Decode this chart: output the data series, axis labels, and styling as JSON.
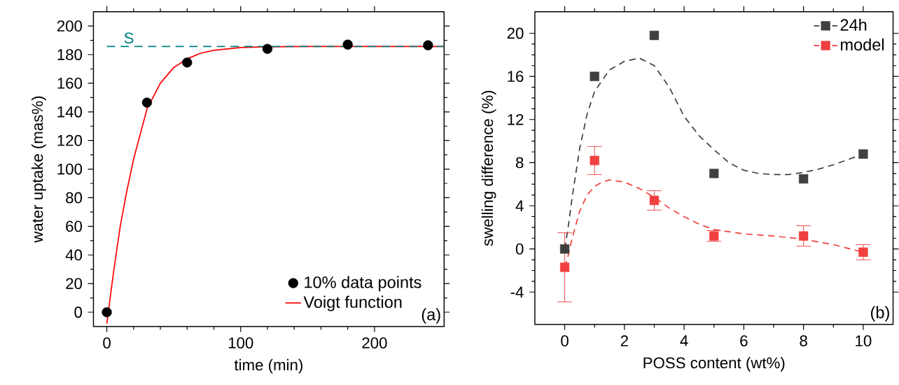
{
  "chart_data": [
    {
      "type": "scatter",
      "xlabel": "time (min)",
      "ylabel": "water uptake (mas%)",
      "xlim": [
        -10,
        252
      ],
      "ylim": [
        -10,
        210
      ],
      "xticks": [
        0,
        100,
        200
      ],
      "yticks": [
        0,
        20,
        40,
        60,
        80,
        100,
        120,
        140,
        160,
        180,
        200
      ],
      "legend": "bottom right",
      "series": [
        {
          "name": "10% data points",
          "marker": "circle",
          "color": "#000000",
          "x": [
            0,
            30,
            60,
            120,
            180,
            240
          ],
          "values": [
            0,
            146.5,
            174.5,
            184,
            187,
            186.5
          ]
        },
        {
          "name": "Voigt function",
          "type": "line",
          "marker": "none",
          "color": "#ff0000",
          "line_style": "solid",
          "x": [
            0,
            5,
            10,
            15,
            20,
            30,
            40,
            50,
            60,
            70,
            80,
            100,
            120,
            150,
            200,
            252
          ],
          "values": [
            -8,
            28,
            60,
            85,
            107,
            142,
            160,
            171,
            177,
            181,
            183,
            185,
            185.5,
            185.7,
            185.7,
            185.7
          ]
        }
      ],
      "ref_lines": [
        {
          "axis": "y",
          "value": 185.7,
          "label": "S",
          "color": "#008080",
          "line_style": "dashed"
        }
      ],
      "annotations": [
        "(a)"
      ]
    },
    {
      "type": "scatter",
      "xlabel": "POSS content (wt%)",
      "ylabel": "swelling difference (%)",
      "xlim": [
        -1,
        11
      ],
      "ylim": [
        -7,
        22
      ],
      "xticks": [
        0,
        2,
        4,
        6,
        8,
        10
      ],
      "yticks": [
        -4,
        0,
        4,
        8,
        12,
        16,
        20
      ],
      "legend": "top right",
      "line_style": "dashed",
      "series": [
        {
          "name": "24h",
          "marker": "square",
          "color": "#404040",
          "x": [
            0,
            1,
            3,
            5,
            8,
            10
          ],
          "values": [
            0,
            16,
            19.8,
            7,
            6.5,
            8.8
          ]
        },
        {
          "type": "line",
          "marker": "none",
          "color": "#404040",
          "x": [
            0,
            0.1,
            0.25,
            0.5,
            0.75,
            1,
            1.5,
            2,
            2.5,
            3,
            3.5,
            4,
            4.5,
            5,
            5.5,
            6,
            6.5,
            7,
            7.5,
            8,
            8.5,
            9,
            9.5,
            10
          ],
          "values": [
            0,
            1.7,
            4.8,
            9.3,
            12.5,
            14.6,
            16.6,
            17.4,
            17.7,
            17.0,
            15.0,
            12.3,
            10.5,
            9.2,
            8.0,
            7.3,
            7.0,
            6.9,
            6.9,
            7.1,
            7.4,
            7.8,
            8.3,
            8.8
          ]
        },
        {
          "name": "model",
          "marker": "square",
          "color": "#f04040",
          "x": [
            0,
            1,
            3,
            5,
            8,
            10
          ],
          "values": [
            -1.7,
            8.2,
            4.5,
            1.2,
            1.2,
            -0.3
          ],
          "errors": [
            3.2,
            1.3,
            0.9,
            0.5,
            0.95,
            0.7
          ]
        },
        {
          "type": "line",
          "marker": "none",
          "color": "#f04040",
          "x": [
            0,
            0.1,
            0.25,
            0.5,
            0.75,
            1,
            1.25,
            1.5,
            2,
            2.5,
            3,
            3.5,
            4,
            4.5,
            5,
            6,
            7,
            8,
            9,
            10
          ],
          "values": [
            -1.7,
            -0.8,
            1.0,
            3.5,
            5.0,
            5.8,
            6.2,
            6.4,
            6.2,
            5.6,
            4.8,
            3.8,
            3.0,
            2.3,
            1.8,
            1.4,
            1.2,
            0.9,
            0.4,
            -0.3
          ]
        }
      ],
      "annotations": [
        "(b)"
      ]
    }
  ]
}
